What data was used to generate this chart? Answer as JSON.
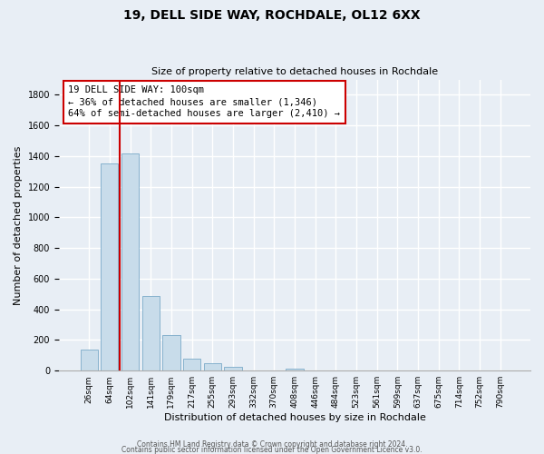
{
  "title": "19, DELL SIDE WAY, ROCHDALE, OL12 6XX",
  "subtitle": "Size of property relative to detached houses in Rochdale",
  "xlabel": "Distribution of detached houses by size in Rochdale",
  "ylabel": "Number of detached properties",
  "bar_labels": [
    "26sqm",
    "64sqm",
    "102sqm",
    "141sqm",
    "179sqm",
    "217sqm",
    "255sqm",
    "293sqm",
    "332sqm",
    "370sqm",
    "408sqm",
    "446sqm",
    "484sqm",
    "523sqm",
    "561sqm",
    "599sqm",
    "637sqm",
    "675sqm",
    "714sqm",
    "752sqm",
    "790sqm"
  ],
  "bar_values": [
    140,
    1350,
    1415,
    490,
    230,
    80,
    50,
    25,
    0,
    0,
    15,
    0,
    0,
    0,
    0,
    0,
    0,
    0,
    0,
    0,
    0
  ],
  "bar_color": "#c8dcea",
  "bar_edge_color": "#7aaac8",
  "subject_line_color": "#cc0000",
  "subject_line_index": 2,
  "annotation_line1": "19 DELL SIDE WAY: 100sqm",
  "annotation_line2": "← 36% of detached houses are smaller (1,346)",
  "annotation_line3": "64% of semi-detached houses are larger (2,410) →",
  "annotation_box_color": "#ffffff",
  "annotation_box_edge": "#cc0000",
  "ylim": [
    0,
    1900
  ],
  "yticks": [
    0,
    200,
    400,
    600,
    800,
    1000,
    1200,
    1400,
    1600,
    1800
  ],
  "footer1": "Contains HM Land Registry data © Crown copyright and database right 2024.",
  "footer2": "Contains public sector information licensed under the Open Government Licence v3.0.",
  "bg_color": "#e8eef5",
  "plot_bg_color": "#e8eef5",
  "grid_color": "#ffffff",
  "title_fontsize": 10,
  "subtitle_fontsize": 8,
  "xlabel_fontsize": 8,
  "ylabel_fontsize": 8,
  "tick_fontsize": 7,
  "xtick_fontsize": 6.5,
  "footer_fontsize": 5.5,
  "annotation_fontsize": 7.5
}
